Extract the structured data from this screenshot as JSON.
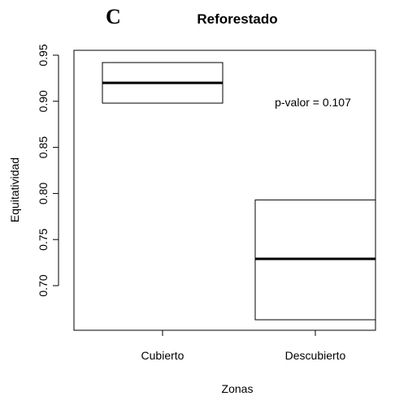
{
  "panel_label": "C",
  "chart_data": {
    "type": "box",
    "title": "Reforestado",
    "xlabel": "Zonas",
    "ylabel": "Equitatividad",
    "categories": [
      "Cubierto",
      "Descubierto"
    ],
    "boxes": [
      {
        "category": "Cubierto",
        "q1": 0.898,
        "median": 0.92,
        "q3": 0.942
      },
      {
        "category": "Descubierto",
        "q1": 0.663,
        "median": 0.729,
        "q3": 0.793
      }
    ],
    "yticks": [
      "0.70",
      "0.75",
      "0.80",
      "0.85",
      "0.90",
      "0.95"
    ],
    "ylim": [
      0.65,
      0.955
    ],
    "annotation": "p-valor = 0.107",
    "grid": false
  }
}
